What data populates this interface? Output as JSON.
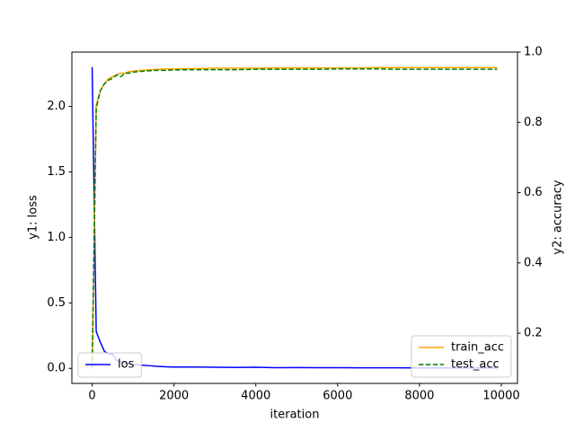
{
  "chart_data": {
    "type": "line",
    "xlabel": "iteration",
    "ylabel": "y1: loss",
    "y2label": "y2: accuracy",
    "x": [
      0,
      100,
      200,
      300,
      400,
      500,
      600,
      700,
      800,
      900,
      1000,
      1200,
      1400,
      1600,
      1800,
      2000,
      2500,
      3000,
      3500,
      4000,
      4500,
      5000,
      5500,
      6000,
      6500,
      7000,
      7500,
      8000,
      8500,
      9000,
      9500,
      9900
    ],
    "xlim": [
      -495,
      10395
    ],
    "xticks": [
      0,
      2000,
      4000,
      6000,
      8000,
      10000
    ],
    "ylim": [
      -0.115,
      2.415
    ],
    "yticks": [
      {
        "value": 0,
        "label": "0.0"
      },
      {
        "value": 0.5,
        "label": "0.5"
      },
      {
        "value": 1,
        "label": "1.0"
      },
      {
        "value": 1.5,
        "label": "1.5"
      },
      {
        "value": 2,
        "label": "2.0"
      }
    ],
    "y2lim": [
      0.057,
      1.0
    ],
    "y2ticks": [
      0.2,
      0.4,
      0.6,
      0.8,
      {
        "value": 1,
        "label": "1.0"
      }
    ],
    "legend": "lower left",
    "y2legend": "lower right",
    "series": [
      {
        "name": "los",
        "color": "#0000ff",
        "axis": "y",
        "dash": "solid",
        "values": [
          2.3,
          0.28,
          0.2,
          0.13,
          0.11,
          0.11,
          0.06,
          0.05,
          0.04,
          0.035,
          0.03,
          0.025,
          0.02,
          0.015,
          0.012,
          0.01,
          0.01,
          0.008,
          0.007,
          0.008,
          0.005,
          0.006,
          0.005,
          0.005,
          0.004,
          0.004,
          0.004,
          0.003,
          0.003,
          0.003,
          0.003,
          0.003
        ]
      },
      {
        "name": "train_acc",
        "color": "#ffa500",
        "axis": "y2",
        "dash": "solid",
        "values": [
          0.1,
          0.85,
          0.89,
          0.91,
          0.925,
          0.93,
          0.935,
          0.94,
          0.94,
          0.944,
          0.946,
          0.948,
          0.95,
          0.951,
          0.952,
          0.952,
          0.953,
          0.954,
          0.954,
          0.954,
          0.955,
          0.955,
          0.955,
          0.955,
          0.955,
          0.956,
          0.956,
          0.956,
          0.956,
          0.956,
          0.956,
          0.956
        ]
      },
      {
        "name": "test_acc",
        "color": "#008000",
        "axis": "y2",
        "dash": "dashed",
        "values": [
          0.1,
          0.84,
          0.89,
          0.91,
          0.92,
          0.925,
          0.935,
          0.93,
          0.94,
          0.94,
          0.943,
          0.945,
          0.947,
          0.948,
          0.948,
          0.949,
          0.95,
          0.95,
          0.95,
          0.951,
          0.951,
          0.951,
          0.951,
          0.952,
          0.952,
          0.952,
          0.951,
          0.951,
          0.951,
          0.951,
          0.951,
          0.951
        ]
      }
    ]
  }
}
